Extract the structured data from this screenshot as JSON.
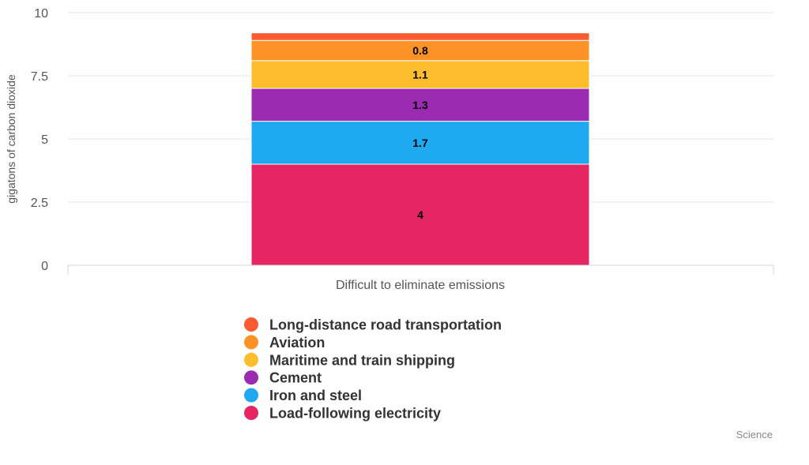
{
  "chart_data": {
    "type": "bar",
    "stacked": true,
    "categories": [
      "Difficult to eliminate emissions"
    ],
    "ylabel": "gigatons of carbon dioxide",
    "ylim": [
      0,
      10
    ],
    "yticks": [
      0,
      2.5,
      5,
      7.5,
      10
    ],
    "ytick_labels": [
      "0",
      "2.5",
      "5",
      "7.5",
      "10"
    ],
    "grid": true,
    "legend_position": "bottom",
    "series": [
      {
        "name": "Load-following electricity",
        "values": [
          4
        ],
        "data_label": "4",
        "color": "#e52662"
      },
      {
        "name": "Iron and steel",
        "values": [
          1.7
        ],
        "data_label": "1.7",
        "color": "#1ea9f0"
      },
      {
        "name": "Cement",
        "values": [
          1.3
        ],
        "data_label": "1.3",
        "color": "#9b2bb0"
      },
      {
        "name": "Maritime and train shipping",
        "values": [
          1.1
        ],
        "data_label": "1.1",
        "color": "#fdbd2c"
      },
      {
        "name": "Aviation",
        "values": [
          0.8
        ],
        "data_label": "0.8",
        "color": "#fd9326"
      },
      {
        "name": "Long-distance road transportation",
        "values": [
          0.3
        ],
        "data_label": "",
        "color": "#fb5b30"
      }
    ],
    "legend_order": [
      "Long-distance road transportation",
      "Aviation",
      "Maritime and train shipping",
      "Cement",
      "Iron and steel",
      "Load-following electricity"
    ]
  },
  "credit": "Science"
}
